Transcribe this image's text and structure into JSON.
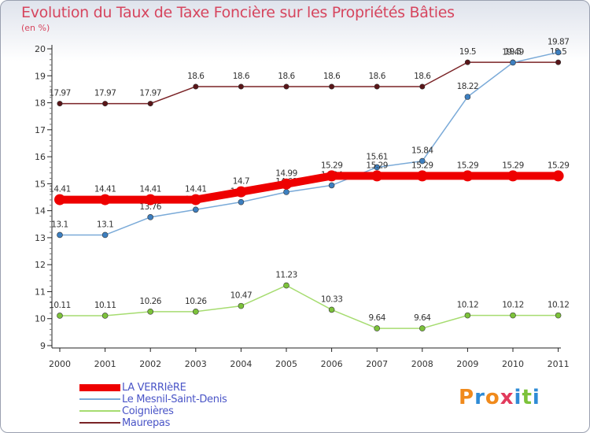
{
  "title": "Evolution du Taux de Taxe Foncière sur les Propriétés Bâties",
  "subtitle": "(en %)",
  "brand": {
    "text": "Proxiti",
    "colors": [
      "#f08a1c",
      "#2e8bd6",
      "#f08a1c",
      "#e23a5c",
      "#2e8bd6",
      "#7cc23a",
      "#2e8bd6"
    ]
  },
  "chart_data": {
    "type": "line",
    "x": [
      "2000",
      "2001",
      "2002",
      "2003",
      "2004",
      "2005",
      "2006",
      "2007",
      "2008",
      "2009",
      "2010",
      "2011"
    ],
    "ylim": [
      9,
      20
    ],
    "yticks": [
      "9",
      "10",
      "11",
      "12",
      "13",
      "14",
      "15",
      "16",
      "17",
      "18",
      "19",
      "20"
    ],
    "xlabel": "",
    "ylabel": "",
    "grid": false,
    "legend_position": "bottom-left",
    "series": [
      {
        "name": "Maurepas",
        "color": "#7a2326",
        "marker": "#5a1518",
        "width": 1.5,
        "radius": 3.2,
        "values": [
          17.97,
          17.97,
          17.97,
          18.6,
          18.6,
          18.6,
          18.6,
          18.6,
          18.6,
          19.5,
          19.5,
          19.5
        ],
        "labels": [
          "17.97",
          "17.97",
          "17.97",
          "18.6",
          "18.6",
          "18.6",
          "18.6",
          "18.6",
          "18.6",
          "19.5",
          "19.5",
          "19.5"
        ]
      },
      {
        "name": "Coignières",
        "color": "#a6dc70",
        "marker": "#7cc23a",
        "width": 1.5,
        "radius": 3.5,
        "values": [
          10.11,
          10.11,
          10.26,
          10.26,
          10.47,
          11.23,
          10.33,
          9.64,
          9.64,
          10.12,
          10.12,
          10.12
        ],
        "labels": [
          "10.11",
          "10.11",
          "10.26",
          "10.26",
          "10.47",
          "11.23",
          "10.33",
          "9.64",
          "9.64",
          "10.12",
          "10.12",
          "10.12"
        ]
      },
      {
        "name": "Le Mesnil-Saint-Denis",
        "color": "#7aaad8",
        "marker": "#3d7fc0",
        "width": 1.5,
        "radius": 3.5,
        "values": [
          13.1,
          13.1,
          13.76,
          14.04,
          14.32,
          14.69,
          14.94,
          15.61,
          15.84,
          18.22,
          19.49,
          19.87
        ],
        "labels": [
          "13.1",
          "13.1",
          "13.76",
          "14.04",
          "14.32",
          "14.69",
          "14.94",
          "15.61",
          "15.84",
          "18.22",
          "19.49",
          "19.87"
        ]
      },
      {
        "name": "LA VERRIèRE",
        "color": "#ee0000",
        "marker": "#ee0000",
        "width": 10,
        "radius": 7,
        "values": [
          14.41,
          14.41,
          14.41,
          14.41,
          14.7,
          14.99,
          15.29,
          15.29,
          15.29,
          15.29,
          15.29,
          15.29
        ],
        "labels": [
          "14.41",
          "14.41",
          "14.41",
          "14.41",
          "14.7",
          "14.99",
          "15.29",
          "15.29",
          "15.29",
          "15.29",
          "15.29",
          "15.29"
        ]
      }
    ]
  }
}
